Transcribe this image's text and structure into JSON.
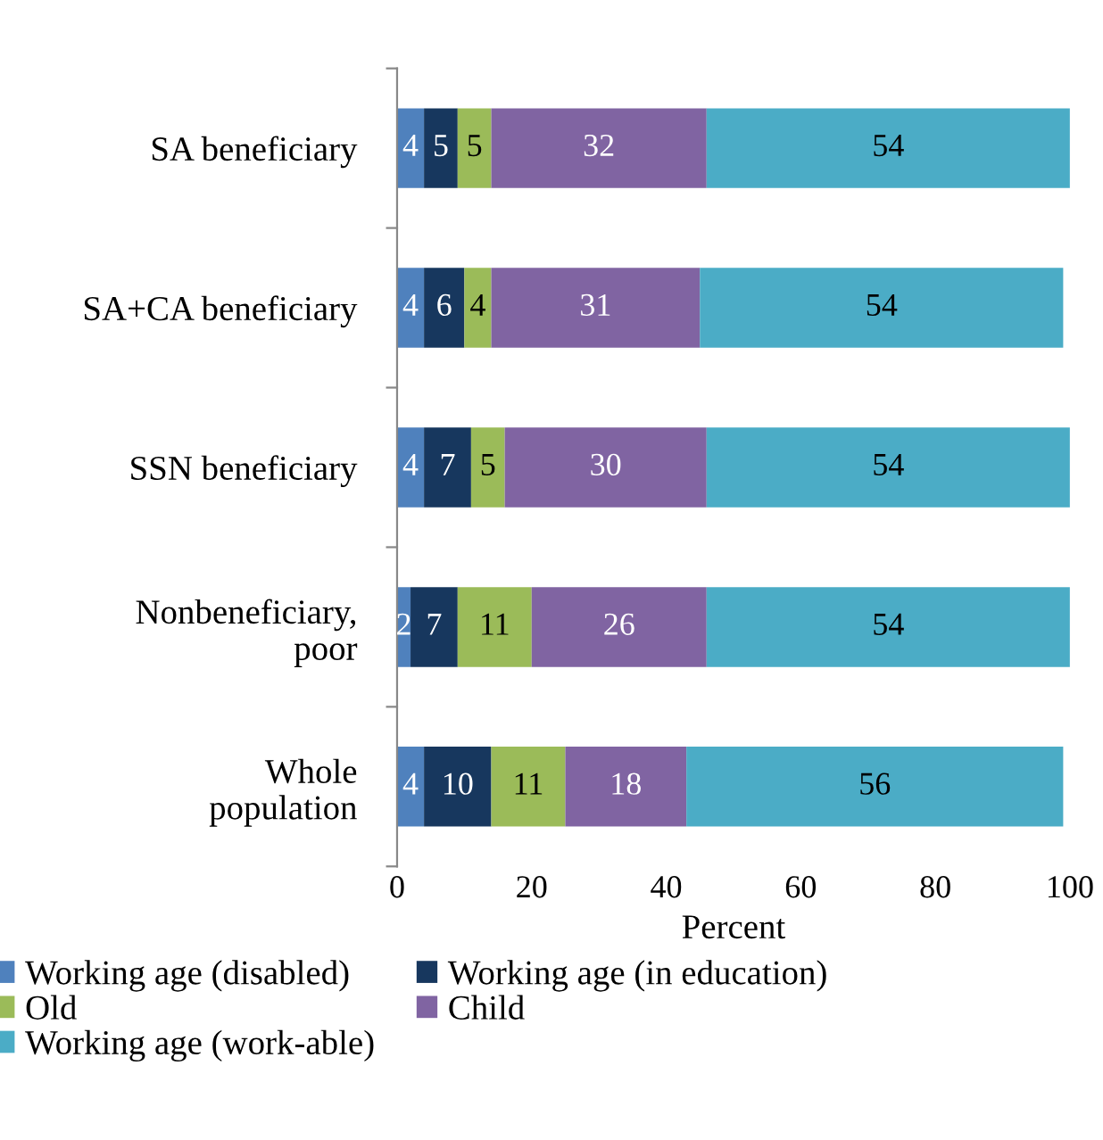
{
  "chart_data": {
    "type": "bar",
    "orientation": "horizontal",
    "stacked": true,
    "xlabel": "Percent",
    "categories": [
      "SA beneficiary",
      "SA+CA beneficiary",
      "SSN beneficiary",
      "Nonbeneficiary,\npoor",
      "Whole\npopulation"
    ],
    "series": [
      {
        "name": "Working age (disabled)",
        "color": "#4f81bd",
        "values": [
          4,
          4,
          4,
          2,
          4
        ]
      },
      {
        "name": "Working age (in education)",
        "color": "#17375e",
        "values": [
          5,
          6,
          7,
          7,
          10
        ]
      },
      {
        "name": "Old",
        "color": "#9bbb59",
        "values": [
          5,
          4,
          5,
          11,
          11
        ]
      },
      {
        "name": "Child",
        "color": "#8064a2",
        "values": [
          32,
          31,
          30,
          26,
          18
        ]
      },
      {
        "name": "Working age (work-able)",
        "color": "#4bacc6",
        "values": [
          54,
          54,
          54,
          54,
          56
        ]
      }
    ],
    "xlim": [
      0,
      100
    ],
    "xticks": [
      0,
      20,
      40,
      60,
      80,
      100
    ],
    "data_labels": true,
    "legend": "bottom",
    "grid": false
  }
}
